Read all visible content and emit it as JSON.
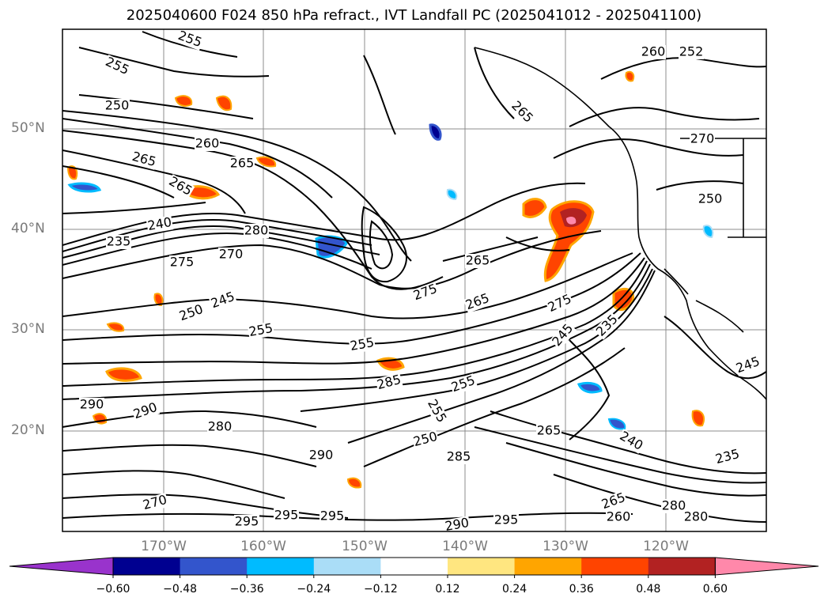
{
  "title": "2025040600 F024 850 hPa refract., IVT Landfall PC (2025041012 - 2025041100)",
  "lat_labels": [
    "50°N",
    "40°N",
    "30°N",
    "20°N"
  ],
  "lon_labels": [
    "170°W",
    "160°W",
    "150°W",
    "140°W",
    "130°W",
    "120°W"
  ],
  "colorbar": {
    "ticks": [
      "−0.60",
      "−0.48",
      "−0.36",
      "−0.24",
      "−0.12",
      "0.12",
      "0.24",
      "0.36",
      "0.48",
      "0.60"
    ],
    "colors": [
      "#9933cc",
      "#000090",
      "#3355cc",
      "#00bbff",
      "#aaddf7",
      "#ffffff",
      "#ffe680",
      "#ffa500",
      "#ff4400",
      "#b22222",
      "#ff88aa"
    ],
    "extend": "both"
  },
  "contour_labels": [
    "255",
    "255",
    "250",
    "260",
    "265",
    "265",
    "265",
    "265",
    "260",
    "252",
    "270",
    "250",
    "240",
    "235",
    "280",
    "275",
    "270",
    "265",
    "275",
    "265",
    "250",
    "245",
    "255",
    "255",
    "285",
    "255",
    "275",
    "245",
    "235",
    "290",
    "290",
    "280",
    "290",
    "250",
    "255",
    "285",
    "265",
    "240",
    "235",
    "245",
    "295",
    "295",
    "295",
    "290",
    "295",
    "265",
    "260",
    "280",
    "280",
    "270"
  ],
  "colors": {
    "contour": "#000000",
    "grid": "#8c8c8c",
    "axis_label": "#7a7a7a",
    "coast": "#000000"
  }
}
